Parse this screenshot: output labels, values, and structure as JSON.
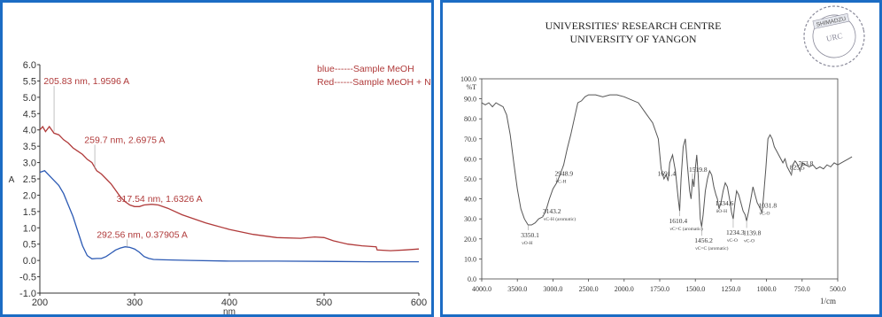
{
  "colors": {
    "frame": "#1c6cc4",
    "red_series": "#b03a3a",
    "blue_series": "#2c5ab4",
    "axis": "#333333",
    "ir_trace": "#555555",
    "stamp": "#8a8a9a"
  },
  "chart_data": [
    {
      "type": "line",
      "title": "",
      "xlabel": "nm",
      "ylabel": "A",
      "xlim": [
        200,
        600
      ],
      "ylim": [
        -1.0,
        6.0
      ],
      "x_ticks": [
        "200",
        "300",
        "400",
        "500",
        "600"
      ],
      "y_ticks": [
        "-1.0",
        "-0.5",
        "0.0",
        "0.5",
        "1.0",
        "1.5",
        "2.0",
        "2.5",
        "3.0",
        "3.5",
        "4.0",
        "4.5",
        "5.0",
        "5.5",
        "6.0"
      ],
      "legend": [
        "blue------Sample MeOH",
        "Red------Sample MeOH + NaOH"
      ],
      "annotations": [
        "205.83 nm, 1.9596 A",
        "259.7 nm, 2.6975 A",
        "317.54 nm, 1.6326 A",
        "292.56 nm, 0.37905 A"
      ],
      "series": [
        {
          "color": "red",
          "points": [
            [
              200,
              4.0
            ],
            [
              203,
              4.1
            ],
            [
              206,
              3.95
            ],
            [
              210,
              4.1
            ],
            [
              215,
              3.9
            ],
            [
              220,
              3.85
            ],
            [
              225,
              3.7
            ],
            [
              230,
              3.6
            ],
            [
              235,
              3.45
            ],
            [
              240,
              3.35
            ],
            [
              245,
              3.25
            ],
            [
              250,
              3.1
            ],
            [
              255,
              3.0
            ],
            [
              260,
              2.75
            ],
            [
              265,
              2.65
            ],
            [
              270,
              2.5
            ],
            [
              275,
              2.35
            ],
            [
              280,
              2.15
            ],
            [
              285,
              1.95
            ],
            [
              290,
              1.8
            ],
            [
              295,
              1.7
            ],
            [
              300,
              1.65
            ],
            [
              305,
              1.65
            ],
            [
              310,
              1.7
            ],
            [
              318,
              1.72
            ],
            [
              325,
              1.7
            ],
            [
              335,
              1.6
            ],
            [
              350,
              1.4
            ],
            [
              375,
              1.15
            ],
            [
              400,
              0.95
            ],
            [
              425,
              0.8
            ],
            [
              450,
              0.7
            ],
            [
              475,
              0.68
            ],
            [
              490,
              0.72
            ],
            [
              500,
              0.7
            ],
            [
              510,
              0.6
            ],
            [
              525,
              0.5
            ],
            [
              540,
              0.45
            ],
            [
              555,
              0.42
            ],
            [
              556,
              0.32
            ],
            [
              570,
              0.3
            ],
            [
              585,
              0.32
            ],
            [
              600,
              0.35
            ]
          ]
        },
        {
          "color": "blue",
          "points": [
            [
              200,
              2.7
            ],
            [
              205,
              2.75
            ],
            [
              210,
              2.6
            ],
            [
              215,
              2.45
            ],
            [
              220,
              2.3
            ],
            [
              225,
              2.05
            ],
            [
              230,
              1.7
            ],
            [
              235,
              1.35
            ],
            [
              240,
              0.9
            ],
            [
              245,
              0.45
            ],
            [
              250,
              0.15
            ],
            [
              255,
              0.05
            ],
            [
              260,
              0.06
            ],
            [
              265,
              0.06
            ],
            [
              270,
              0.12
            ],
            [
              275,
              0.22
            ],
            [
              280,
              0.32
            ],
            [
              285,
              0.38
            ],
            [
              290,
              0.42
            ],
            [
              295,
              0.4
            ],
            [
              300,
              0.35
            ],
            [
              305,
              0.25
            ],
            [
              310,
              0.12
            ],
            [
              315,
              0.06
            ],
            [
              320,
              0.03
            ],
            [
              330,
              0.02
            ],
            [
              360,
              0.0
            ],
            [
              400,
              -0.02
            ],
            [
              450,
              -0.02
            ],
            [
              500,
              -0.03
            ],
            [
              550,
              -0.04
            ],
            [
              600,
              -0.04
            ]
          ]
        }
      ]
    },
    {
      "type": "line",
      "title": "UNIVERSITIES' RESEARCH CENTRE",
      "subtitle": "UNIVERSITY OF YANGON",
      "xlabel": "1/cm",
      "ylabel": "%T",
      "xlim": [
        4000,
        400
      ],
      "ylim": [
        0,
        100
      ],
      "x_ticks": [
        "4000.0",
        "3500.0",
        "3000.0",
        "2500.0",
        "2000.0",
        "1750.0",
        "1500.0",
        "1250.0",
        "1000.0",
        "750.0",
        "500.0"
      ],
      "y_ticks": [
        "0.0",
        "10.0",
        "20.0",
        "30.0",
        "40.0",
        "50.0",
        "60.0",
        "70.0",
        "80.0",
        "90.0",
        "100.0"
      ],
      "y_tick_values": [
        0,
        10,
        20,
        30,
        40,
        50,
        60,
        70,
        80,
        90,
        100
      ],
      "x_tick_values": [
        4000,
        3500,
        3000,
        2500,
        2000,
        1750,
        1500,
        1250,
        1000,
        750,
        500
      ],
      "stamp_text": [
        "SHIMADZU",
        "URC"
      ],
      "peaks": [
        {
          "value": "3350.1",
          "sub": "νO-H",
          "at": [
            3350,
            27
          ]
        },
        {
          "value": "3143.2",
          "sub": "νC-H (aromatic)",
          "at": [
            3143,
            31
          ]
        },
        {
          "value": "2948.9",
          "sub": "νC-H",
          "at": [
            2949,
            48
          ]
        },
        {
          "value": "1691.4",
          "sub": "",
          "at": [
            1691,
            49
          ]
        },
        {
          "value": "1519.8",
          "sub": "",
          "at": [
            1520,
            50
          ]
        },
        {
          "value": "1610.4",
          "sub": "νC=C (aromatic)",
          "at": [
            1610,
            34
          ]
        },
        {
          "value": "1456.2",
          "sub": "νC=C (aromatic)",
          "at": [
            1456,
            26
          ]
        },
        {
          "value": "1334.6",
          "sub": "δO-H",
          "at": [
            1335,
            35
          ]
        },
        {
          "value": "1234.3",
          "sub": "νC-O",
          "at": [
            1234,
            30
          ]
        },
        {
          "value": "1139.8",
          "sub": "νC-O",
          "at": [
            1140,
            29
          ]
        },
        {
          "value": "1031.8",
          "sub": "νC-O",
          "at": [
            1032,
            33
          ]
        },
        {
          "value": "825.5",
          "sub": "",
          "at": [
            825,
            52
          ]
        },
        {
          "value": "763.8",
          "sub": "",
          "at": [
            764,
            54
          ]
        }
      ],
      "series": [
        {
          "color": "gray",
          "points": [
            [
              4000,
              88
            ],
            [
              3950,
              87
            ],
            [
              3900,
              88
            ],
            [
              3850,
              86
            ],
            [
              3800,
              88
            ],
            [
              3750,
              87
            ],
            [
              3700,
              86
            ],
            [
              3650,
              82
            ],
            [
              3600,
              72
            ],
            [
              3550,
              58
            ],
            [
              3500,
              45
            ],
            [
              3450,
              35
            ],
            [
              3400,
              30
            ],
            [
              3350,
              27
            ],
            [
              3300,
              27
            ],
            [
              3250,
              28
            ],
            [
              3200,
              30
            ],
            [
              3143,
              31
            ],
            [
              3100,
              34
            ],
            [
              3050,
              40
            ],
            [
              3000,
              45
            ],
            [
              2948,
              48
            ],
            [
              2900,
              52
            ],
            [
              2850,
              57
            ],
            [
              2800,
              65
            ],
            [
              2750,
              72
            ],
            [
              2700,
              80
            ],
            [
              2650,
              88
            ],
            [
              2600,
              89
            ],
            [
              2550,
              91
            ],
            [
              2500,
              92
            ],
            [
              2400,
              92
            ],
            [
              2300,
              91
            ],
            [
              2200,
              92
            ],
            [
              2100,
              92
            ],
            [
              2000,
              91
            ],
            [
              1900,
              88
            ],
            [
              1850,
              83
            ],
            [
              1800,
              78
            ],
            [
              1760,
              70
            ],
            [
              1740,
              55
            ],
            [
              1720,
              50
            ],
            [
              1705,
              52
            ],
            [
              1691,
              49
            ],
            [
              1680,
              58
            ],
            [
              1660,
              62
            ],
            [
              1640,
              54
            ],
            [
              1620,
              40
            ],
            [
              1610,
              34
            ],
            [
              1600,
              50
            ],
            [
              1585,
              66
            ],
            [
              1570,
              70
            ],
            [
              1555,
              56
            ],
            [
              1540,
              44
            ],
            [
              1530,
              40
            ],
            [
              1519,
              50
            ],
            [
              1510,
              46
            ],
            [
              1500,
              55
            ],
            [
              1490,
              62
            ],
            [
              1480,
              52
            ],
            [
              1465,
              30
            ],
            [
              1456,
              26
            ],
            [
              1445,
              32
            ],
            [
              1430,
              44
            ],
            [
              1415,
              50
            ],
            [
              1400,
              54
            ],
            [
              1385,
              52
            ],
            [
              1370,
              46
            ],
            [
              1355,
              42
            ],
            [
              1345,
              40
            ],
            [
              1334,
              35
            ],
            [
              1320,
              38
            ],
            [
              1305,
              44
            ],
            [
              1290,
              48
            ],
            [
              1275,
              46
            ],
            [
              1260,
              40
            ],
            [
              1245,
              33
            ],
            [
              1234,
              30
            ],
            [
              1222,
              38
            ],
            [
              1210,
              44
            ],
            [
              1195,
              42
            ],
            [
              1180,
              38
            ],
            [
              1165,
              34
            ],
            [
              1150,
              32
            ],
            [
              1140,
              29
            ],
            [
              1125,
              34
            ],
            [
              1110,
              40
            ],
            [
              1095,
              46
            ],
            [
              1080,
              42
            ],
            [
              1065,
              38
            ],
            [
              1050,
              36
            ],
            [
              1032,
              33
            ],
            [
              1020,
              42
            ],
            [
              1005,
              55
            ],
            [
              990,
              70
            ],
            [
              975,
              72
            ],
            [
              960,
              70
            ],
            [
              945,
              66
            ],
            [
              930,
              64
            ],
            [
              915,
              62
            ],
            [
              900,
              60
            ],
            [
              885,
              58
            ],
            [
              870,
              60
            ],
            [
              855,
              56
            ],
            [
              840,
              54
            ],
            [
              825,
              52
            ],
            [
              815,
              57
            ],
            [
              800,
              59
            ],
            [
              790,
              58
            ],
            [
              775,
              56
            ],
            [
              764,
              54
            ],
            [
              750,
              58
            ],
            [
              725,
              57
            ],
            [
              700,
              56
            ],
            [
              675,
              57
            ],
            [
              650,
              55
            ],
            [
              625,
              56
            ],
            [
              600,
              55
            ],
            [
              575,
              57
            ],
            [
              550,
              56
            ],
            [
              525,
              58
            ],
            [
              500,
              57
            ],
            [
              475,
              58
            ],
            [
              450,
              59
            ],
            [
              425,
              60
            ],
            [
              400,
              61
            ]
          ]
        }
      ]
    }
  ]
}
